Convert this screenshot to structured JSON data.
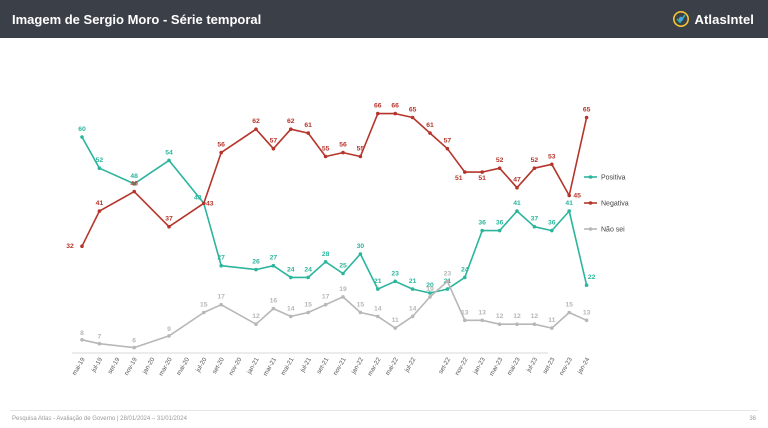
{
  "header": {
    "title": "Imagem de Sergio Moro - Série temporal",
    "brand": "AtlasIntel"
  },
  "footer": {
    "source": "Pesquisa Atlas - Avaliação de Governo | 28/01/2024 – 31/01/2024",
    "page": "36"
  },
  "colors": {
    "header_bg": "#3b3f47",
    "positiva": "#2bb59c",
    "negativa": "#b5352b",
    "nao_sei": "#b7b7b7"
  },
  "chart_data": {
    "type": "line",
    "title": "",
    "xlabel": "",
    "ylabel": "",
    "ylim": [
      0,
      70
    ],
    "grid": false,
    "legend_position": "right",
    "x": [
      "mai-19",
      "jul-19",
      "set-19",
      "nov-19",
      "jan-20",
      "mar-20",
      "mai-20",
      "jul-20",
      "set-20",
      "nov-20",
      "jan-21",
      "mar-21",
      "mai-21",
      "jul-21",
      "set-21",
      "nov-21",
      "jan-22",
      "mar-22",
      "mai-22",
      "jul-22",
      "ago-22",
      "set-22",
      "nov-22",
      "jan-23",
      "mar-23",
      "mai-23",
      "jul-23",
      "set-23",
      "nov-23",
      "jan-24"
    ],
    "xticks": [
      "mai-19",
      "jul-19",
      "set-19",
      "nov-19",
      "jan-20",
      "mar-20",
      "mai-20",
      "jul-20",
      "set-20",
      "nov-20",
      "jan-21",
      "mar-21",
      "mai-21",
      "jul-21",
      "set-21",
      "nov-21",
      "jan-22",
      "mar-22",
      "mai-22",
      "jul-22",
      "set-22",
      "nov-22",
      "jan-23",
      "mar-23",
      "mai-23",
      "jul-23",
      "set-23",
      "nov-23",
      "jan-24"
    ],
    "series": [
      {
        "name": "Positiva",
        "color": "#2bb59c",
        "points": [
          {
            "x": "mai-19",
            "y": 60
          },
          {
            "x": "jul-19",
            "y": 52
          },
          {
            "x": "nov-19",
            "y": 48
          },
          {
            "x": "mar-20",
            "y": 54
          },
          {
            "x": "jul-20",
            "y": 43
          },
          {
            "x": "set-20",
            "y": 27
          },
          {
            "x": "jan-21",
            "y": 26
          },
          {
            "x": "mar-21",
            "y": 27
          },
          {
            "x": "mai-21",
            "y": 24
          },
          {
            "x": "jul-21",
            "y": 24
          },
          {
            "x": "set-21",
            "y": 28
          },
          {
            "x": "nov-21",
            "y": 25
          },
          {
            "x": "jan-22",
            "y": 30
          },
          {
            "x": "mar-22",
            "y": 21
          },
          {
            "x": "mai-22",
            "y": 23
          },
          {
            "x": "jul-22",
            "y": 21
          },
          {
            "x": "ago-22",
            "y": 20
          },
          {
            "x": "set-22",
            "y": 21
          },
          {
            "x": "nov-22",
            "y": 24
          },
          {
            "x": "jan-23",
            "y": 36
          },
          {
            "x": "mar-23",
            "y": 36
          },
          {
            "x": "mai-23",
            "y": 41
          },
          {
            "x": "jul-23",
            "y": 37
          },
          {
            "x": "set-23",
            "y": 36
          },
          {
            "x": "nov-23",
            "y": 41
          },
          {
            "x": "jan-24",
            "y": 22
          }
        ]
      },
      {
        "name": "Negativa",
        "color": "#b5352b",
        "points": [
          {
            "x": "mai-19",
            "y": 32
          },
          {
            "x": "jul-19",
            "y": 41
          },
          {
            "x": "nov-19",
            "y": 46
          },
          {
            "x": "mar-20",
            "y": 37
          },
          {
            "x": "jul-20",
            "y": 43
          },
          {
            "x": "set-20",
            "y": 56
          },
          {
            "x": "jan-21",
            "y": 62
          },
          {
            "x": "mar-21",
            "y": 57
          },
          {
            "x": "mai-21",
            "y": 62
          },
          {
            "x": "jul-21",
            "y": 61
          },
          {
            "x": "set-21",
            "y": 55
          },
          {
            "x": "nov-21",
            "y": 56
          },
          {
            "x": "jan-22",
            "y": 55
          },
          {
            "x": "mar-22",
            "y": 66
          },
          {
            "x": "mai-22",
            "y": 66
          },
          {
            "x": "jul-22",
            "y": 65
          },
          {
            "x": "ago-22",
            "y": 61
          },
          {
            "x": "set-22",
            "y": 57
          },
          {
            "x": "nov-22",
            "y": 51
          },
          {
            "x": "jan-23",
            "y": 51
          },
          {
            "x": "mar-23",
            "y": 52
          },
          {
            "x": "mai-23",
            "y": 47
          },
          {
            "x": "jul-23",
            "y": 52
          },
          {
            "x": "set-23",
            "y": 53
          },
          {
            "x": "nov-23",
            "y": 45
          },
          {
            "x": "jan-24",
            "y": 65
          }
        ]
      },
      {
        "name": "Não sei",
        "color": "#b7b7b7",
        "points": [
          {
            "x": "mai-19",
            "y": 8
          },
          {
            "x": "jul-19",
            "y": 7
          },
          {
            "x": "nov-19",
            "y": 6
          },
          {
            "x": "mar-20",
            "y": 9
          },
          {
            "x": "jul-20",
            "y": 15
          },
          {
            "x": "set-20",
            "y": 17
          },
          {
            "x": "jan-21",
            "y": 12
          },
          {
            "x": "mar-21",
            "y": 16
          },
          {
            "x": "mai-21",
            "y": 14
          },
          {
            "x": "jul-21",
            "y": 15
          },
          {
            "x": "set-21",
            "y": 17
          },
          {
            "x": "nov-21",
            "y": 19
          },
          {
            "x": "jan-22",
            "y": 15
          },
          {
            "x": "mar-22",
            "y": 14
          },
          {
            "x": "mai-22",
            "y": 11
          },
          {
            "x": "jul-22",
            "y": 14
          },
          {
            "x": "ago-22",
            "y": 19
          },
          {
            "x": "set-22",
            "y": 23
          },
          {
            "x": "nov-22",
            "y": 13
          },
          {
            "x": "jan-23",
            "y": 13
          },
          {
            "x": "mar-23",
            "y": 12
          },
          {
            "x": "mai-23",
            "y": 12
          },
          {
            "x": "jul-23",
            "y": 12
          },
          {
            "x": "set-23",
            "y": 11
          },
          {
            "x": "nov-23",
            "y": 15
          },
          {
            "x": "jan-24",
            "y": 13
          }
        ]
      }
    ]
  }
}
